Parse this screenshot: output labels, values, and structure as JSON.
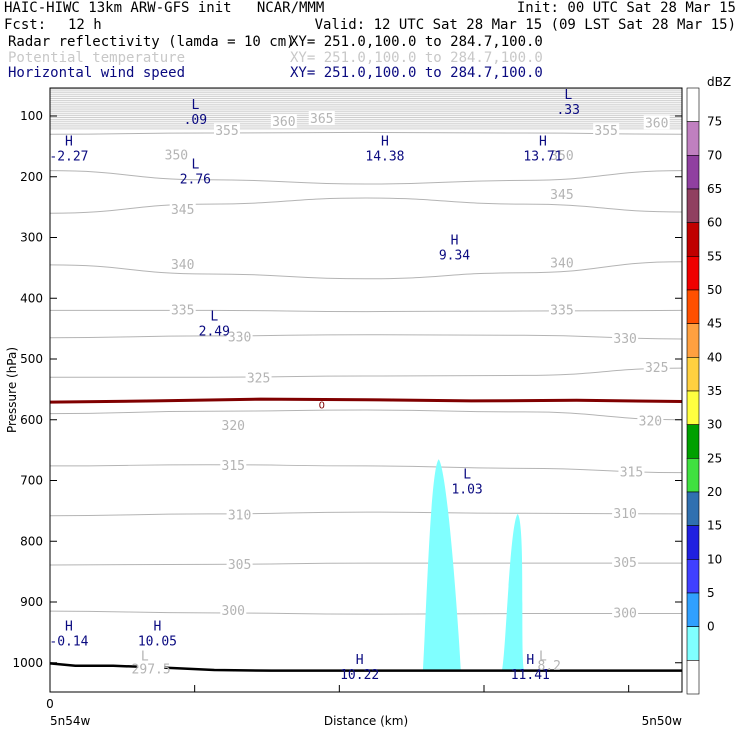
{
  "header": {
    "title_left": "HAIC-HIWC 13km ARW-GFS init   NCAR/MMM",
    "init": "Init: 00 UTC Sat 28 Mar 15",
    "fcst_label": "Fcst:",
    "fcst_value": "12 h",
    "valid": "Valid: 12 UTC Sat 28 Mar 15 (09 LST Sat 28 Mar 15)",
    "fields": [
      {
        "name": "Radar reflectivity (lamda = 10 cm)",
        "xy": "XY= 251.0,100.0 to 284.7,100.0",
        "color": "#000000"
      },
      {
        "name": "Potential temperature",
        "xy": "XY= 251.0,100.0 to 284.7,100.0",
        "color": "#c8c8c8"
      },
      {
        "name": "Horizontal wind speed",
        "xy": "XY= 251.0,100.0 to 284.7,100.0",
        "color": "#0a0a80"
      }
    ]
  },
  "chart_data": {
    "type": "contour",
    "xlabel": "Distance (km)",
    "ylabel": "Pressure (hPa)",
    "x_ticks": [
      "0"
    ],
    "x_end_labels": [
      "5n54w",
      "5n50w"
    ],
    "y_ticks": [
      "100",
      "200",
      "300",
      "400",
      "500",
      "600",
      "700",
      "800",
      "900",
      "1000"
    ],
    "theta_labels": [
      {
        "text": "360",
        "x": 0.37,
        "p": 110
      },
      {
        "text": "365",
        "x": 0.43,
        "p": 105
      },
      {
        "text": "355",
        "x": 0.28,
        "p": 125
      },
      {
        "text": "360",
        "x": 0.96,
        "p": 112
      },
      {
        "text": "355",
        "x": 0.88,
        "p": 125
      },
      {
        "text": "350",
        "x": 0.2,
        "p": 165
      },
      {
        "text": "350",
        "x": 0.81,
        "p": 166
      },
      {
        "text": "345",
        "x": 0.21,
        "p": 255
      },
      {
        "text": "345",
        "x": 0.81,
        "p": 230
      },
      {
        "text": "340",
        "x": 0.21,
        "p": 345
      },
      {
        "text": "340",
        "x": 0.81,
        "p": 343
      },
      {
        "text": "335",
        "x": 0.21,
        "p": 420
      },
      {
        "text": "335",
        "x": 0.81,
        "p": 420
      },
      {
        "text": "330",
        "x": 0.3,
        "p": 465
      },
      {
        "text": "330",
        "x": 0.91,
        "p": 467
      },
      {
        "text": "325",
        "x": 0.33,
        "p": 532
      },
      {
        "text": "325",
        "x": 0.96,
        "p": 515
      },
      {
        "text": "320",
        "x": 0.29,
        "p": 610
      },
      {
        "text": "320",
        "x": 0.95,
        "p": 603
      },
      {
        "text": "315",
        "x": 0.29,
        "p": 676
      },
      {
        "text": "315",
        "x": 0.92,
        "p": 687
      },
      {
        "text": "310",
        "x": 0.3,
        "p": 758
      },
      {
        "text": "310",
        "x": 0.91,
        "p": 755
      },
      {
        "text": "305",
        "x": 0.3,
        "p": 839
      },
      {
        "text": "305",
        "x": 0.91,
        "p": 836
      },
      {
        "text": "300",
        "x": 0.29,
        "p": 915
      },
      {
        "text": "300",
        "x": 0.91,
        "p": 919
      },
      {
        "text": "297.5",
        "x": 0.16,
        "p": 1011
      }
    ],
    "freezing_label": {
      "text": "0",
      "x": 0.43,
      "p": 575
    },
    "wind_extrema": [
      {
        "type": "H",
        "value": "-2.27",
        "x": 0.03,
        "p": 152
      },
      {
        "type": "L",
        "value": ".09",
        "x": 0.23,
        "p": 92
      },
      {
        "type": "L",
        "value": "2.76",
        "x": 0.23,
        "p": 190
      },
      {
        "type": "H",
        "value": "14.38",
        "x": 0.53,
        "p": 152
      },
      {
        "type": "H",
        "value": "13.71",
        "x": 0.78,
        "p": 152
      },
      {
        "type": "L",
        "value": ".33",
        "x": 0.82,
        "p": 75
      },
      {
        "type": "H",
        "value": "9.34",
        "x": 0.64,
        "p": 315
      },
      {
        "type": "L",
        "value": "2.49",
        "x": 0.26,
        "p": 440
      },
      {
        "type": "L",
        "value": "1.03",
        "x": 0.66,
        "p": 700
      },
      {
        "type": "H",
        "value": "-0.14",
        "x": 0.03,
        "p": 950
      },
      {
        "type": "H",
        "value": "10.05",
        "x": 0.17,
        "p": 950
      },
      {
        "type": "H",
        "value": "10.22",
        "x": 0.49,
        "p": 1005
      },
      {
        "type": "H",
        "value": "11.41",
        "x": 0.76,
        "p": 1005
      }
    ],
    "extra_labels": [
      {
        "text": "L",
        "x": 0.15,
        "p": 990
      },
      {
        "text": "L",
        "x": 0.78,
        "p": 990
      },
      {
        "text": "8.2",
        "x": 0.79,
        "p": 1005
      }
    ],
    "reflectivity_features": [
      {
        "name": "cell-1",
        "level_dbz": 5,
        "x_left": 0.59,
        "x_right": 0.65,
        "x_peak": 0.615,
        "p_top": 665,
        "p_bottom": 1013
      },
      {
        "name": "cell-2",
        "level_dbz": 5,
        "x_left": 0.715,
        "x_right": 0.75,
        "x_peak": 0.74,
        "p_top": 755,
        "p_bottom": 1013
      }
    ],
    "colorbar": {
      "units": "dBZ",
      "levels": [
        "75",
        "70",
        "65",
        "60",
        "55",
        "50",
        "45",
        "40",
        "35",
        "30",
        "25",
        "20",
        "15",
        "10",
        "5",
        "0"
      ],
      "colors": [
        "#ffffff",
        "#c080c0",
        "#9040a0",
        "#904060",
        "#c00000",
        "#f00000",
        "#ff5000",
        "#ffa040",
        "#ffd040",
        "#ffff40",
        "#00a000",
        "#40e040",
        "#3070b0",
        "#2020e0",
        "#4040ff",
        "#30a0ff",
        "#80ffff",
        "#ffffff"
      ]
    },
    "colors": {
      "theta": "#b4b4b4",
      "wind_label": "#0a0a80",
      "freezing": "#800000",
      "terrain": "#000000",
      "reflectivity_fill": "#80ffff"
    }
  }
}
